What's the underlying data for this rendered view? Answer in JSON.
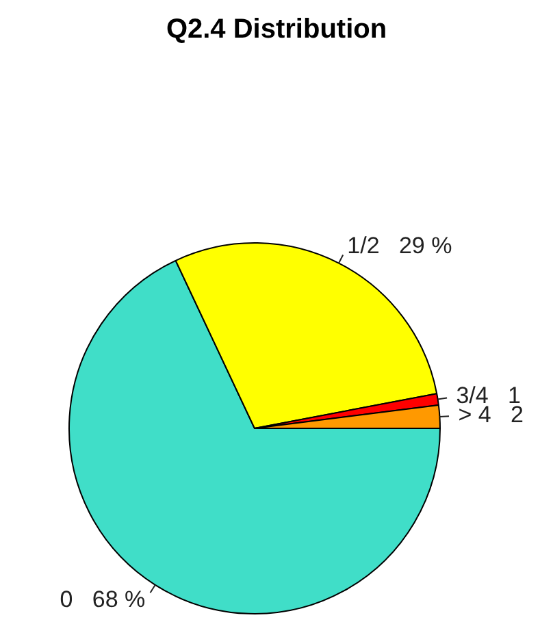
{
  "chart_data": {
    "type": "pie",
    "title": "Q2.4 Distribution",
    "categories": [
      "0",
      "1/2",
      "3/4",
      "> 4"
    ],
    "values": [
      68,
      29,
      1,
      2
    ],
    "value_labels": [
      "68 %",
      "29 %",
      "1",
      "2"
    ],
    "colors": [
      "#40dec8",
      "#ffff00",
      "#ff0000",
      "#ff9900"
    ],
    "legend": false
  }
}
